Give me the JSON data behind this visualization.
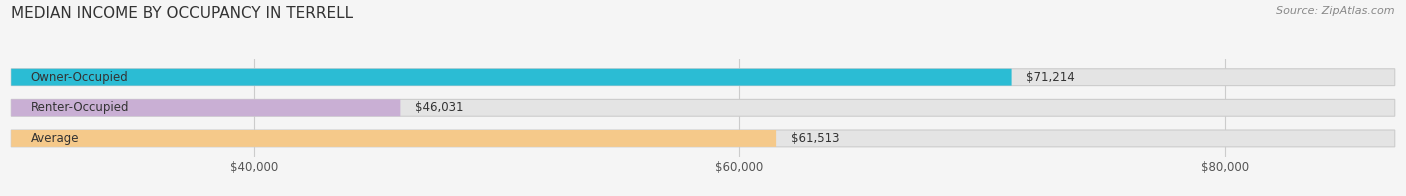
{
  "title": "MEDIAN INCOME BY OCCUPANCY IN TERRELL",
  "source": "Source: ZipAtlas.com",
  "categories": [
    "Owner-Occupied",
    "Renter-Occupied",
    "Average"
  ],
  "values": [
    71214,
    46031,
    61513
  ],
  "bar_colors": [
    "#2bbcd4",
    "#c9afd4",
    "#f5c98a"
  ],
  "bar_labels": [
    "$71,214",
    "$46,031",
    "$61,513"
  ],
  "xlim_min": 30000,
  "xlim_max": 87000,
  "xticks": [
    40000,
    60000,
    80000
  ],
  "xtick_labels": [
    "$40,000",
    "$60,000",
    "$80,000"
  ],
  "background_color": "#f5f5f5",
  "bar_bg_color": "#e4e4e4",
  "title_fontsize": 11,
  "label_fontsize": 8.5,
  "source_fontsize": 8
}
